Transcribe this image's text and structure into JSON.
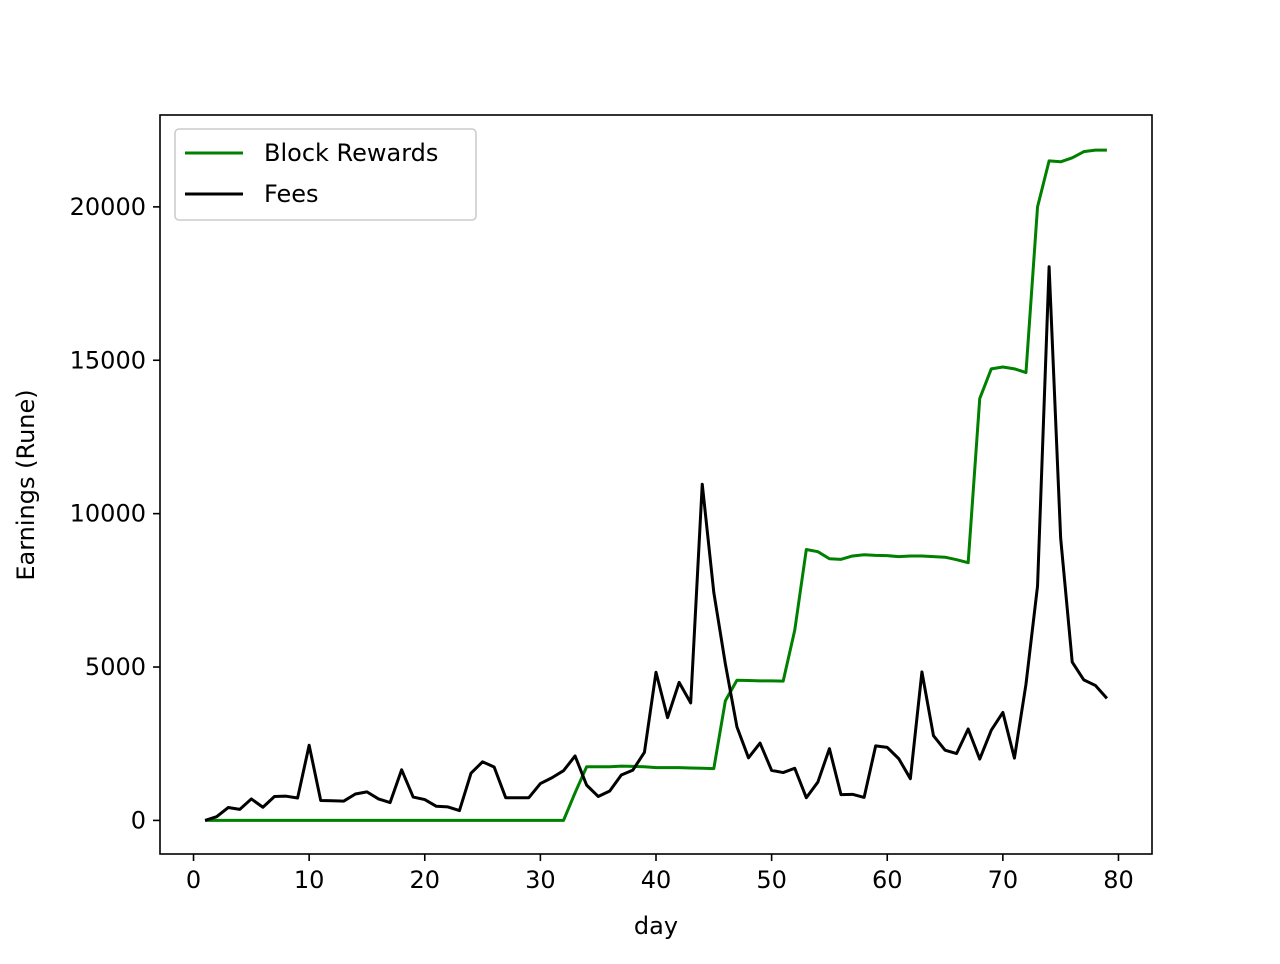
{
  "chart_data": {
    "type": "line",
    "xlabel": "day",
    "ylabel": "Earnings (Rune)",
    "x": [
      1,
      2,
      3,
      4,
      5,
      6,
      7,
      8,
      9,
      10,
      11,
      12,
      13,
      14,
      15,
      16,
      17,
      18,
      19,
      20,
      21,
      22,
      23,
      24,
      25,
      26,
      27,
      28,
      29,
      30,
      31,
      32,
      33,
      34,
      35,
      36,
      37,
      38,
      39,
      40,
      41,
      42,
      43,
      44,
      45,
      46,
      47,
      48,
      49,
      50,
      51,
      52,
      53,
      54,
      55,
      56,
      57,
      58,
      59,
      60,
      61,
      62,
      63,
      64,
      65,
      66,
      67,
      68,
      69,
      70,
      71,
      72,
      73,
      74,
      75,
      76,
      77,
      78,
      79
    ],
    "series": [
      {
        "name": "Block Rewards",
        "color": "#008000",
        "values": [
          0,
          0,
          0,
          0,
          0,
          0,
          0,
          0,
          0,
          0,
          0,
          0,
          0,
          0,
          0,
          0,
          0,
          0,
          0,
          0,
          0,
          0,
          0,
          0,
          0,
          0,
          0,
          0,
          0,
          0,
          0,
          0,
          900,
          1750,
          1750,
          1750,
          1770,
          1760,
          1750,
          1720,
          1720,
          1720,
          1710,
          1700,
          1690,
          3900,
          4570,
          4560,
          4550,
          4550,
          4540,
          6200,
          8830,
          8760,
          8530,
          8510,
          8620,
          8660,
          8640,
          8630,
          8600,
          8620,
          8620,
          8600,
          8580,
          8500,
          8400,
          13750,
          14720,
          14780,
          14720,
          14600,
          20000,
          21500,
          21470,
          21600,
          21800,
          21850,
          21850
        ]
      },
      {
        "name": "Fees",
        "color": "#000000",
        "values": [
          0,
          120,
          420,
          360,
          700,
          430,
          780,
          790,
          730,
          2450,
          650,
          640,
          630,
          860,
          930,
          700,
          580,
          1650,
          760,
          680,
          460,
          440,
          320,
          1540,
          1910,
          1740,
          740,
          740,
          740,
          1200,
          1390,
          1620,
          2100,
          1150,
          780,
          960,
          1480,
          1640,
          2220,
          4830,
          3350,
          4500,
          3830,
          10960,
          7430,
          5100,
          3050,
          2040,
          2520,
          1630,
          1560,
          1700,
          740,
          1250,
          2340,
          840,
          850,
          750,
          2430,
          2380,
          2010,
          1360,
          4840,
          2760,
          2290,
          2180,
          2980,
          2000,
          2940,
          3520,
          2030,
          4440,
          7640,
          18050,
          9200,
          5160,
          4580,
          4400,
          3980
        ]
      }
    ],
    "xlim": [
      -2.9,
      82.9
    ],
    "xticks": [
      0,
      10,
      20,
      30,
      40,
      50,
      60,
      70,
      80
    ],
    "ylim": [
      -1095,
      22995
    ],
    "yticks": [
      0,
      5000,
      10000,
      15000,
      20000
    ],
    "legend": "upper left",
    "grid": false
  }
}
